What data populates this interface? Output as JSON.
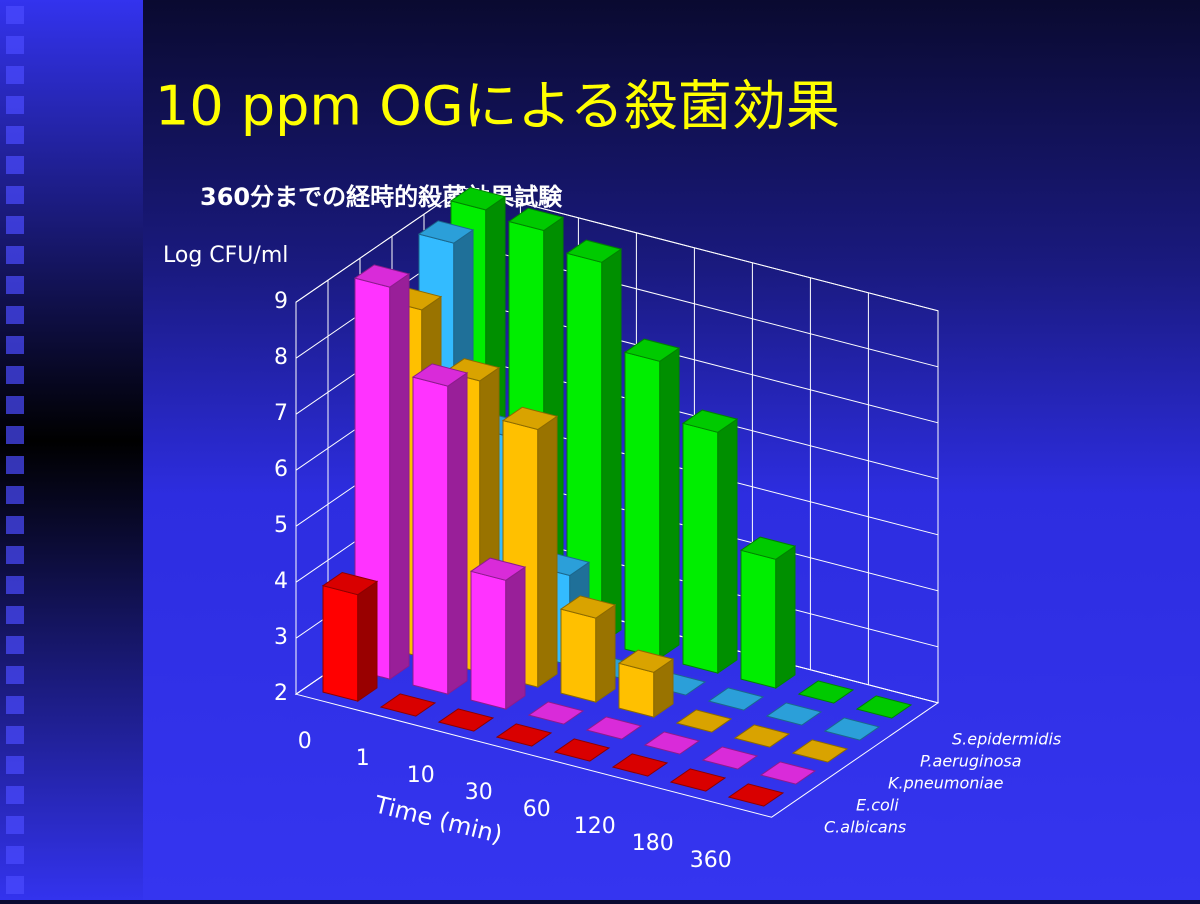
{
  "chart_data": {
    "type": "bar",
    "title": "10 ppm OGによる殺菌効果",
    "subtitle": "360分までの経時的殺菌効果試験",
    "y_label": "Log CFU/ml",
    "x_label": "Time (min)",
    "categories": [
      "0",
      "1",
      "10",
      "30",
      "60",
      "120",
      "180",
      "360"
    ],
    "series": [
      {
        "name": "C.albicans",
        "color": "#ff0000",
        "values": [
          3.9,
          2,
          2,
          2,
          2,
          2,
          2,
          2
        ]
      },
      {
        "name": "E.coli",
        "color": "#ff33ff",
        "values": [
          9.0,
          7.5,
          4.3,
          2,
          2,
          2,
          2,
          2
        ]
      },
      {
        "name": "K.pneumoniae",
        "color": "#ffc000",
        "values": [
          8.2,
          7.2,
          6.6,
          3.5,
          2.8,
          2,
          2,
          2
        ]
      },
      {
        "name": "P.aeruginosa",
        "color": "#33bbff",
        "values": [
          9.0,
          5.8,
          3.6,
          2,
          2,
          2,
          2,
          2
        ]
      },
      {
        "name": "S.epidermidis",
        "color": "#00ee00",
        "values": [
          9.2,
          9.1,
          8.8,
          7.3,
          6.3,
          4.3,
          2,
          2
        ]
      }
    ],
    "ylim": [
      2,
      9
    ],
    "yticks": [
      2,
      3,
      4,
      5,
      6,
      7,
      8,
      9
    ],
    "grid": true
  }
}
